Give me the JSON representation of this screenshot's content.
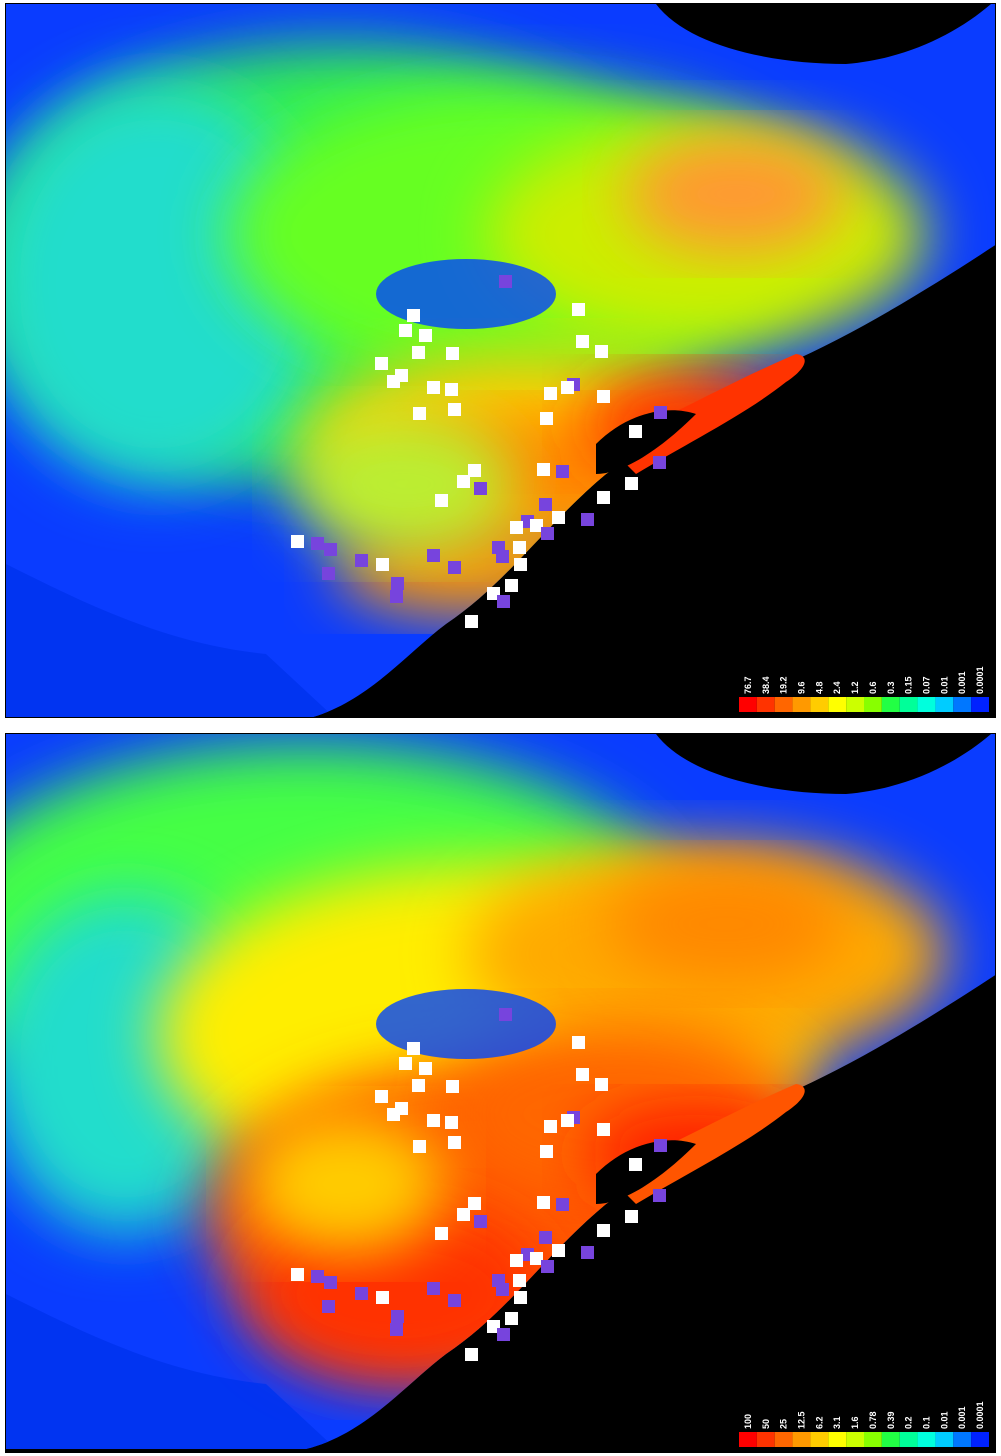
{
  "panels": [
    {
      "legend": {
        "labels": [
          "76.7",
          "38.4",
          "19.2",
          "9.6",
          "4.8",
          "2.4",
          "1.2",
          "0.6",
          "0.3",
          "0.15",
          "0.07",
          "0.01",
          "0.001",
          "0.0001"
        ],
        "colors": [
          "#ff0000",
          "#ff3300",
          "#ff6600",
          "#ff9900",
          "#ffcc00",
          "#ffff00",
          "#ccff00",
          "#88ff00",
          "#22ff44",
          "#00ff99",
          "#00ffdd",
          "#00ccff",
          "#0077ff",
          "#0022ff"
        ]
      }
    },
    {
      "legend": {
        "labels": [
          "100",
          "50",
          "25",
          "12.5",
          "6.2",
          "3.1",
          "1.6",
          "0.78",
          "0.39",
          "0.2",
          "0.1",
          "0.01",
          "0.001",
          "0.0001"
        ],
        "colors": [
          "#ff0000",
          "#ff3300",
          "#ff6600",
          "#ff9900",
          "#ffcc00",
          "#ffff00",
          "#ccff00",
          "#88ff00",
          "#22ff44",
          "#00ff99",
          "#00ffdd",
          "#00ccff",
          "#0077ff",
          "#0022ff"
        ]
      }
    }
  ]
}
